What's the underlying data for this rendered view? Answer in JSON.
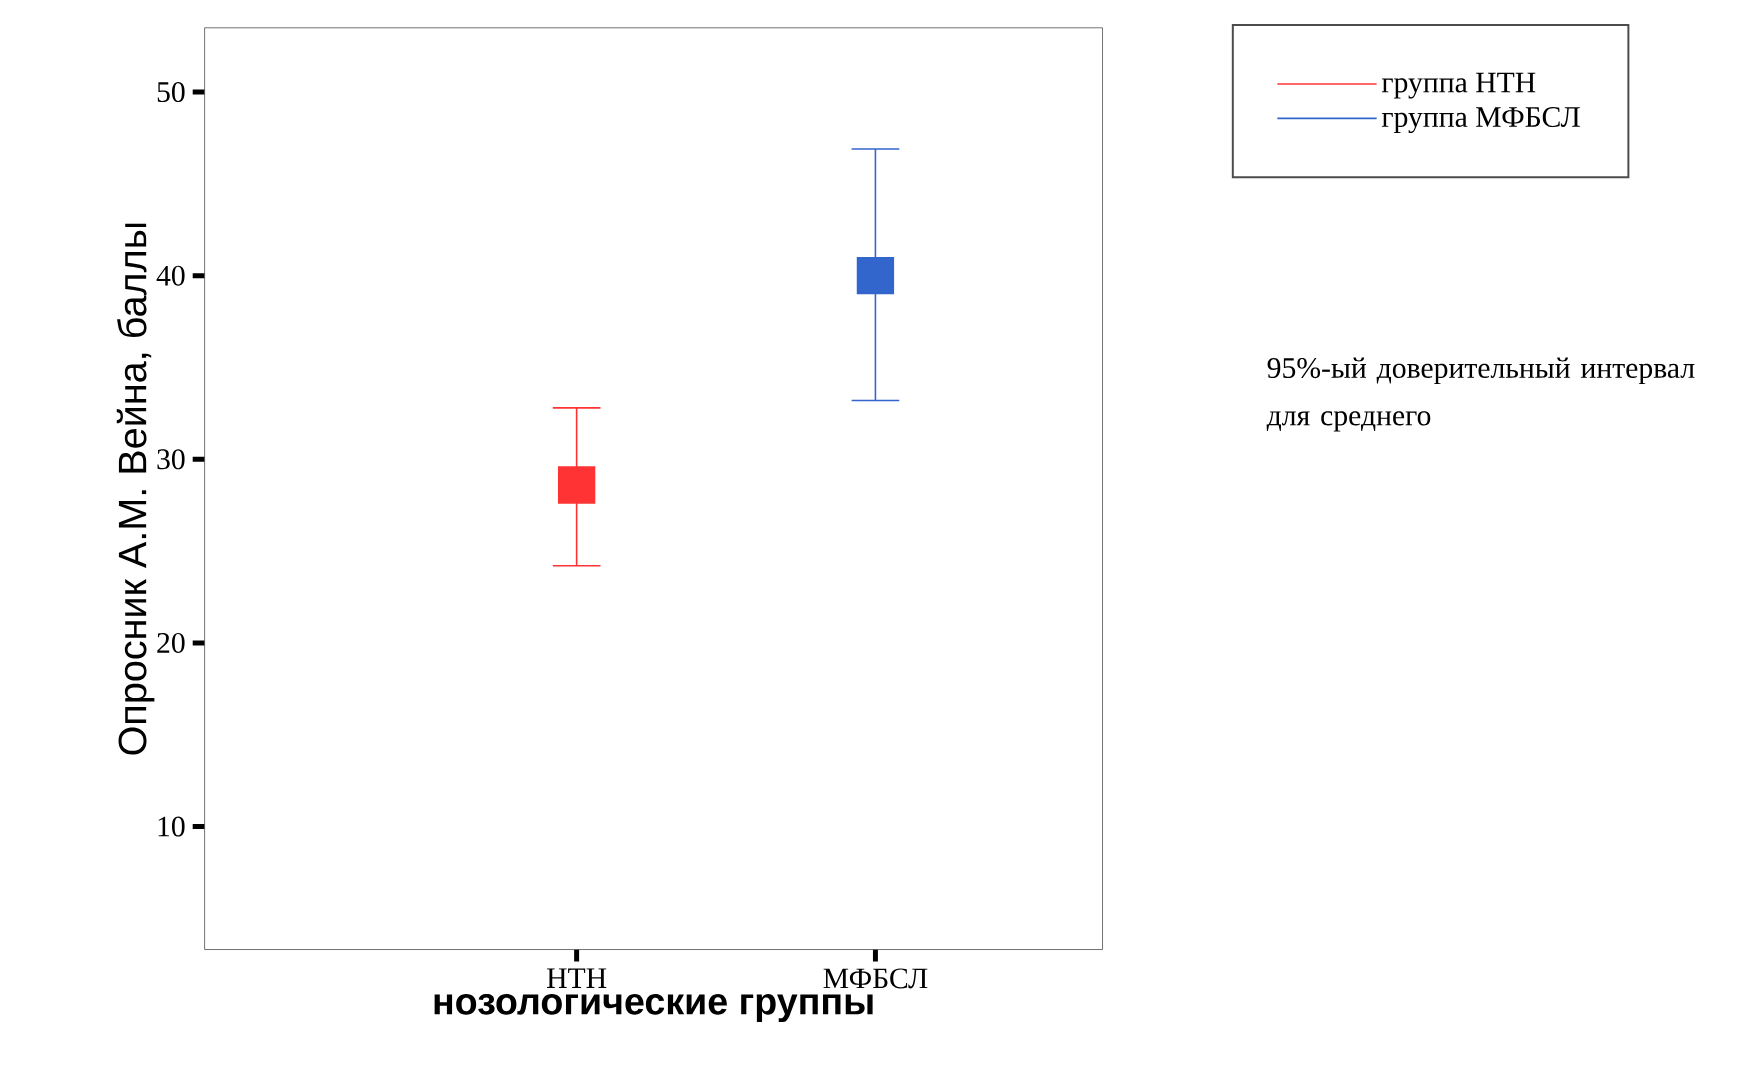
{
  "chart_data": {
    "type": "scatter",
    "xlabel": "нозологические  группы",
    "ylabel": "Опросник А.М. Вейна, баллы",
    "categories": [
      "НТН",
      "МФБСЛ"
    ],
    "series": [
      {
        "name": "группа НТН",
        "color": "#ff3333",
        "values": [
          28.6,
          null
        ],
        "errors": [
          [
            24.2,
            32.8
          ],
          null
        ]
      },
      {
        "name": "группа МФБСЛ",
        "color": "#3366cc",
        "values": [
          null,
          40
        ],
        "errors": [
          null,
          [
            33.2,
            46.9
          ]
        ]
      }
    ],
    "ylim": [
      3.3,
      53.5
    ],
    "yticks": [
      10,
      20,
      30,
      40,
      50
    ],
    "marker": "square",
    "legend": "top right",
    "grid": false,
    "annotations": [
      "95%-ый доверительный интервал для среднего"
    ]
  }
}
